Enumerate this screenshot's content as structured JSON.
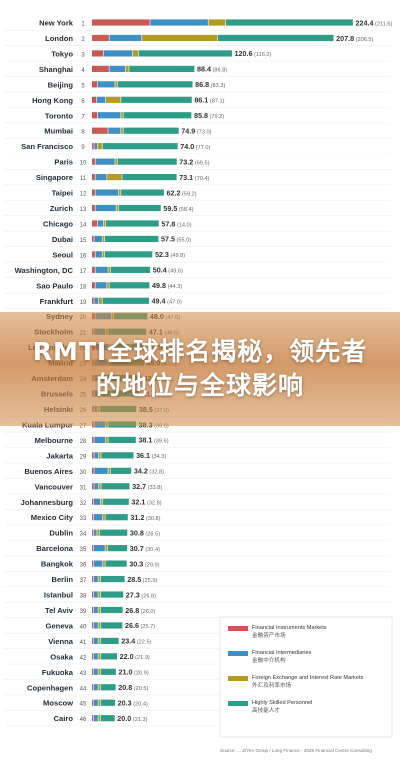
{
  "chart_data": {
    "type": "bar",
    "stacked": true,
    "orientation": "horizontal",
    "categories": [
      "New York",
      "London",
      "Tokyo",
      "Shanghai",
      "Beijing",
      "Hong Kong",
      "Toronto",
      "Mumbai",
      "San Francisco",
      "Paris",
      "Singapore",
      "Taipei",
      "Zurich",
      "Chicago",
      "Dubai",
      "Seoul",
      "Washington, DC",
      "Sao Paulo",
      "Frankfurt",
      "Sydney",
      "Stockholm",
      "Los Angeles",
      "Madrid",
      "Amsterdam",
      "Brussels",
      "Helsinki",
      "Kuala Lumpur",
      "Melbourne",
      "Jakarta",
      "Buenos Aires",
      "Vancouver",
      "Johannesburg",
      "Mexico City",
      "Dublin",
      "Barcelona",
      "Bangkok",
      "Berlin",
      "Istanbul",
      "Tel Aviv",
      "Geneva",
      "Vienna",
      "Osaka",
      "Fukuoka",
      "Copenhagen",
      "Moscow",
      "Cairo"
    ],
    "ranks": [
      1,
      2,
      3,
      4,
      5,
      6,
      7,
      8,
      9,
      10,
      11,
      12,
      13,
      14,
      15,
      16,
      17,
      18,
      19,
      20,
      21,
      22,
      23,
      24,
      25,
      26,
      27,
      28,
      29,
      30,
      31,
      32,
      33,
      34,
      35,
      36,
      37,
      38,
      39,
      40,
      41,
      42,
      43,
      44,
      45,
      46
    ],
    "totals": [
      224.4,
      207.8,
      120.6,
      88.4,
      86.8,
      86.1,
      85.8,
      74.9,
      74.0,
      73.2,
      73.1,
      62.2,
      59.5,
      57.8,
      57.5,
      52.3,
      50.4,
      49.8,
      49.4,
      48.0,
      47.1,
      46.5,
      45.0,
      42.6,
      41.3,
      38.5,
      38.3,
      38.1,
      36.1,
      34.2,
      32.7,
      32.1,
      31.2,
      30.8,
      30.7,
      30.3,
      28.5,
      27.3,
      26.8,
      26.6,
      23.4,
      22.0,
      21.0,
      20.8,
      20.3,
      20.0
    ],
    "annotations": [
      "224.4 (211.6)",
      "207.8 (206.5)",
      "120.6 (116.2)",
      "88.4 (86.8)",
      "86.8 (83.3)",
      "86.1 (87.1)",
      "85.8 (79.2)",
      "74.9 (73.0)",
      "74.0 (77.0)",
      "73.2 (69.5)",
      "73.1 (70.4)",
      "62.2 (59.2)",
      "59.5 (58.4)",
      "57.8 (14.0)",
      "57.5 (55.0)",
      "52.3 (49.8)",
      "50.4 (49.6)",
      "49.8 (44.3)",
      "49.4 (47.0)",
      "48.0 (47.0)",
      "47.1 (46.5)",
      "46.5 (46.2)",
      "45.0 (43.7)",
      "42.6 (41.0)",
      "41.3 (40.3)",
      "38.5 (37.0)",
      "38.3 (39.0)",
      "38.1 (39.6)",
      "36.1 (34.3)",
      "34.2 (32.8)",
      "32.7 (33.8)",
      "32.1 (32.8)",
      "31.2 (30.8)",
      "30.8 (28.5)",
      "30.7 (30.4)",
      "30.3 (29.9)",
      "28.5 (25.9)",
      "27.3 (26.8)",
      "26.8 (26.0)",
      "26.6 (25.7)",
      "23.4 (22.5)",
      "22.0 (21.9)",
      "21.0 (20.9)",
      "20.8 (20.5)",
      "20.3 (20.4)",
      "20.0 (21.3)"
    ],
    "series": [
      {
        "name": "Financial Instruments Markets",
        "name_cn": "金融资产市场",
        "color": "#c85a55",
        "values": [
          50.0,
          15.0,
          10.0,
          15.0,
          5.0,
          4.0,
          5.0,
          14.0,
          2.0,
          3.0,
          3.0,
          3.0,
          3.0,
          5.0,
          2.0,
          3.0,
          3.0,
          3.0,
          2.0,
          3.0,
          2.0,
          3.0,
          2.0,
          2.0,
          2.0,
          2.0,
          2.0,
          2.0,
          2.0,
          2.0,
          2.0,
          1.5,
          1.5,
          1.5,
          1.5,
          1.5,
          1.5,
          1.5,
          1.5,
          1.5,
          1.5,
          1.5,
          1.5,
          1.5,
          1.5,
          1.5
        ]
      },
      {
        "name": "Financial Intermediaries",
        "name_cn": "金融中介机构",
        "color": "#3d8fc4",
        "values": [
          50.0,
          28.0,
          25.0,
          14.0,
          15.0,
          8.0,
          20.0,
          11.0,
          3.0,
          17.0,
          10.0,
          20.0,
          18.0,
          5.0,
          7.0,
          6.0,
          11.0,
          10.0,
          4.0,
          14.0,
          10.0,
          12.0,
          12.0,
          4.0,
          5.0,
          3.0,
          10.0,
          10.0,
          4.0,
          12.0,
          4.0,
          6.0,
          8.0,
          3.0,
          10.0,
          8.0,
          4.0,
          4.0,
          4.0,
          4.0,
          4.0,
          4.0,
          4.0,
          4.0,
          4.0,
          4.0
        ]
      },
      {
        "name": "Foreign Exchange and Interest Rate Markets",
        "name_cn": "外汇及利率市场",
        "color": "#b39a22",
        "values": [
          15.0,
          65.0,
          5.0,
          3.0,
          2.0,
          13.0,
          2.0,
          2.0,
          4.0,
          2.0,
          13.0,
          2.0,
          2.0,
          2.0,
          2.0,
          2.0,
          2.0,
          2.0,
          3.0,
          2.0,
          2.0,
          2.0,
          2.0,
          2.0,
          2.0,
          2.0,
          2.0,
          2.0,
          2.0,
          2.0,
          2.0,
          2.0,
          2.0,
          2.0,
          2.0,
          2.0,
          2.0,
          2.0,
          2.0,
          2.0,
          2.0,
          2.0,
          2.0,
          2.0,
          2.0,
          2.0
        ]
      },
      {
        "name": "Highly Skilled Personnel",
        "name_cn": "高技能人才",
        "color": "#2e9c86",
        "values": [
          109.4,
          99.8,
          80.6,
          56.4,
          64.8,
          61.1,
          58.8,
          47.9,
          65.0,
          51.2,
          47.1,
          37.2,
          36.5,
          45.8,
          46.5,
          41.3,
          34.4,
          34.8,
          40.4,
          29.0,
          33.1,
          29.5,
          29.0,
          34.6,
          32.3,
          31.5,
          24.3,
          24.1,
          28.1,
          18.2,
          24.7,
          22.6,
          19.7,
          24.3,
          17.2,
          18.8,
          21.0,
          19.8,
          19.3,
          19.1,
          15.9,
          14.5,
          13.5,
          13.3,
          12.8,
          12.5
        ]
      }
    ],
    "xlim": [
      0,
      230
    ],
    "legend_position": "bottom-right",
    "footnote": "Source: ... Z/Yen Group / Long Finance - 2025 Financial Centre Consulting"
  },
  "banner": {
    "title": "RMTI全球排名揭秘，领先者的地位与全球影响"
  }
}
